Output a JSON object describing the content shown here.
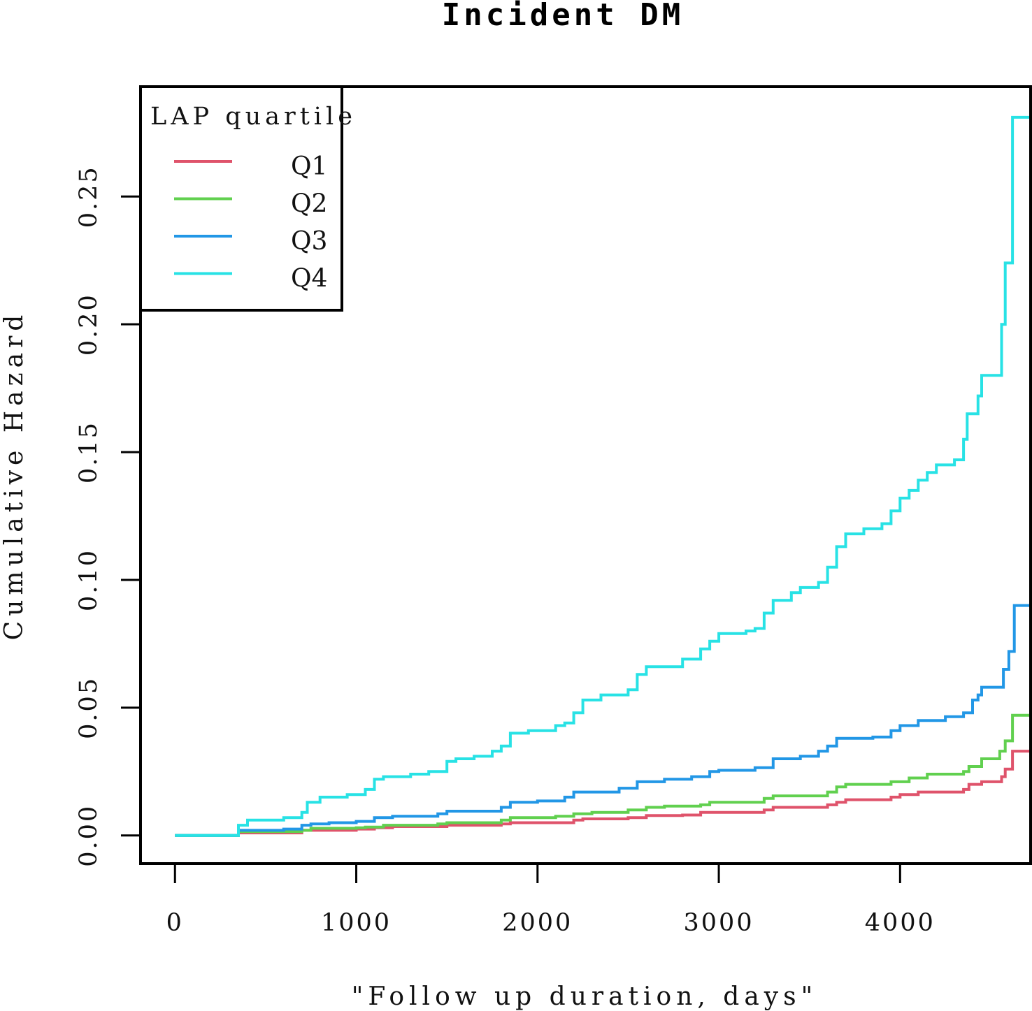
{
  "chart_data": {
    "type": "line",
    "step": true,
    "title": "Incident DM",
    "xlabel": "\"Follow up duration, days\"",
    "ylabel": "Cumulative Hazard",
    "xlim": [
      -190,
      4720
    ],
    "ylim": [
      -0.011,
      0.293
    ],
    "x_ticks": [
      0,
      1000,
      2000,
      3000,
      4000
    ],
    "x_tick_labels": [
      "0",
      "1000",
      "2000",
      "3000",
      "4000"
    ],
    "y_ticks": [
      0.0,
      0.05,
      0.1,
      0.15,
      0.2,
      0.25
    ],
    "y_tick_labels": [
      "0.00",
      "0.05",
      "0.10",
      "0.15",
      "0.20",
      "0.25"
    ],
    "grid": false,
    "legend": {
      "title": "LAP quartile",
      "position": "top-left"
    },
    "series": [
      {
        "name": "Q1",
        "color": "#df536b",
        "points": [
          [
            0,
            0
          ],
          [
            300,
            0
          ],
          [
            350,
            0.001
          ],
          [
            700,
            0.002
          ],
          [
            750,
            0.002
          ],
          [
            1000,
            0.0025
          ],
          [
            1100,
            0.003
          ],
          [
            1200,
            0.0035
          ],
          [
            1500,
            0.004
          ],
          [
            1800,
            0.0045
          ],
          [
            1850,
            0.005
          ],
          [
            2000,
            0.005
          ],
          [
            2200,
            0.006
          ],
          [
            2250,
            0.0065
          ],
          [
            2500,
            0.007
          ],
          [
            2600,
            0.0078
          ],
          [
            2800,
            0.008
          ],
          [
            2900,
            0.009
          ],
          [
            3000,
            0.009
          ],
          [
            3250,
            0.01
          ],
          [
            3300,
            0.011
          ],
          [
            3600,
            0.012
          ],
          [
            3650,
            0.013
          ],
          [
            3700,
            0.014
          ],
          [
            3950,
            0.015
          ],
          [
            4000,
            0.016
          ],
          [
            4100,
            0.017
          ],
          [
            4350,
            0.018
          ],
          [
            4380,
            0.02
          ],
          [
            4450,
            0.021
          ],
          [
            4560,
            0.023
          ],
          [
            4580,
            0.026
          ],
          [
            4620,
            0.033
          ],
          [
            4720,
            0.033
          ]
        ]
      },
      {
        "name": "Q2",
        "color": "#61d04f",
        "points": [
          [
            0,
            0
          ],
          [
            300,
            0
          ],
          [
            350,
            0.0015
          ],
          [
            700,
            0.002
          ],
          [
            750,
            0.0028
          ],
          [
            1000,
            0.003
          ],
          [
            1050,
            0.0033
          ],
          [
            1150,
            0.004
          ],
          [
            1450,
            0.0045
          ],
          [
            1500,
            0.005
          ],
          [
            1800,
            0.006
          ],
          [
            1850,
            0.007
          ],
          [
            2100,
            0.0075
          ],
          [
            2200,
            0.0085
          ],
          [
            2300,
            0.009
          ],
          [
            2500,
            0.01
          ],
          [
            2600,
            0.011
          ],
          [
            2700,
            0.0115
          ],
          [
            2900,
            0.012
          ],
          [
            2950,
            0.013
          ],
          [
            3000,
            0.013
          ],
          [
            3250,
            0.0145
          ],
          [
            3300,
            0.0155
          ],
          [
            3600,
            0.017
          ],
          [
            3650,
            0.019
          ],
          [
            3700,
            0.02
          ],
          [
            3950,
            0.021
          ],
          [
            4050,
            0.0225
          ],
          [
            4150,
            0.024
          ],
          [
            4350,
            0.025
          ],
          [
            4380,
            0.027
          ],
          [
            4450,
            0.03
          ],
          [
            4550,
            0.033
          ],
          [
            4580,
            0.037
          ],
          [
            4620,
            0.047
          ],
          [
            4720,
            0.047
          ]
        ]
      },
      {
        "name": "Q3",
        "color": "#2297e6",
        "points": [
          [
            0,
            0
          ],
          [
            300,
            0
          ],
          [
            350,
            0.002
          ],
          [
            600,
            0.0025
          ],
          [
            700,
            0.004
          ],
          [
            750,
            0.0045
          ],
          [
            850,
            0.005
          ],
          [
            1000,
            0.0055
          ],
          [
            1100,
            0.007
          ],
          [
            1200,
            0.0075
          ],
          [
            1450,
            0.0085
          ],
          [
            1500,
            0.0095
          ],
          [
            1800,
            0.011
          ],
          [
            1850,
            0.013
          ],
          [
            2000,
            0.0135
          ],
          [
            2150,
            0.015
          ],
          [
            2200,
            0.017
          ],
          [
            2450,
            0.0185
          ],
          [
            2550,
            0.021
          ],
          [
            2700,
            0.022
          ],
          [
            2850,
            0.023
          ],
          [
            2950,
            0.025
          ],
          [
            3000,
            0.0255
          ],
          [
            3200,
            0.0265
          ],
          [
            3300,
            0.03
          ],
          [
            3450,
            0.031
          ],
          [
            3550,
            0.033
          ],
          [
            3600,
            0.035
          ],
          [
            3650,
            0.038
          ],
          [
            3850,
            0.0385
          ],
          [
            3950,
            0.041
          ],
          [
            4000,
            0.043
          ],
          [
            4100,
            0.045
          ],
          [
            4250,
            0.0465
          ],
          [
            4350,
            0.048
          ],
          [
            4400,
            0.053
          ],
          [
            4430,
            0.055
          ],
          [
            4450,
            0.058
          ],
          [
            4550,
            0.058
          ],
          [
            4570,
            0.065
          ],
          [
            4600,
            0.072
          ],
          [
            4630,
            0.09
          ],
          [
            4720,
            0.09
          ]
        ]
      },
      {
        "name": "Q4",
        "color": "#28e2e5",
        "points": [
          [
            0,
            0
          ],
          [
            300,
            0
          ],
          [
            350,
            0.004
          ],
          [
            400,
            0.006
          ],
          [
            600,
            0.007
          ],
          [
            700,
            0.009
          ],
          [
            730,
            0.013
          ],
          [
            800,
            0.015
          ],
          [
            950,
            0.016
          ],
          [
            1050,
            0.018
          ],
          [
            1100,
            0.022
          ],
          [
            1150,
            0.023
          ],
          [
            1300,
            0.024
          ],
          [
            1400,
            0.025
          ],
          [
            1500,
            0.029
          ],
          [
            1550,
            0.03
          ],
          [
            1650,
            0.031
          ],
          [
            1750,
            0.033
          ],
          [
            1800,
            0.035
          ],
          [
            1850,
            0.04
          ],
          [
            1950,
            0.041
          ],
          [
            2100,
            0.043
          ],
          [
            2150,
            0.044
          ],
          [
            2200,
            0.048
          ],
          [
            2250,
            0.053
          ],
          [
            2350,
            0.055
          ],
          [
            2500,
            0.057
          ],
          [
            2550,
            0.063
          ],
          [
            2600,
            0.066
          ],
          [
            2800,
            0.069
          ],
          [
            2900,
            0.073
          ],
          [
            2950,
            0.076
          ],
          [
            3000,
            0.079
          ],
          [
            3150,
            0.08
          ],
          [
            3200,
            0.081
          ],
          [
            3250,
            0.087
          ],
          [
            3300,
            0.092
          ],
          [
            3400,
            0.095
          ],
          [
            3450,
            0.097
          ],
          [
            3550,
            0.099
          ],
          [
            3600,
            0.105
          ],
          [
            3650,
            0.113
          ],
          [
            3700,
            0.118
          ],
          [
            3800,
            0.12
          ],
          [
            3900,
            0.122
          ],
          [
            3950,
            0.127
          ],
          [
            4000,
            0.132
          ],
          [
            4050,
            0.135
          ],
          [
            4100,
            0.139
          ],
          [
            4150,
            0.142
          ],
          [
            4200,
            0.145
          ],
          [
            4300,
            0.147
          ],
          [
            4350,
            0.155
          ],
          [
            4370,
            0.165
          ],
          [
            4430,
            0.172
          ],
          [
            4450,
            0.18
          ],
          [
            4550,
            0.18
          ],
          [
            4560,
            0.2
          ],
          [
            4580,
            0.224
          ],
          [
            4620,
            0.281
          ],
          [
            4720,
            0.281
          ]
        ]
      }
    ]
  }
}
